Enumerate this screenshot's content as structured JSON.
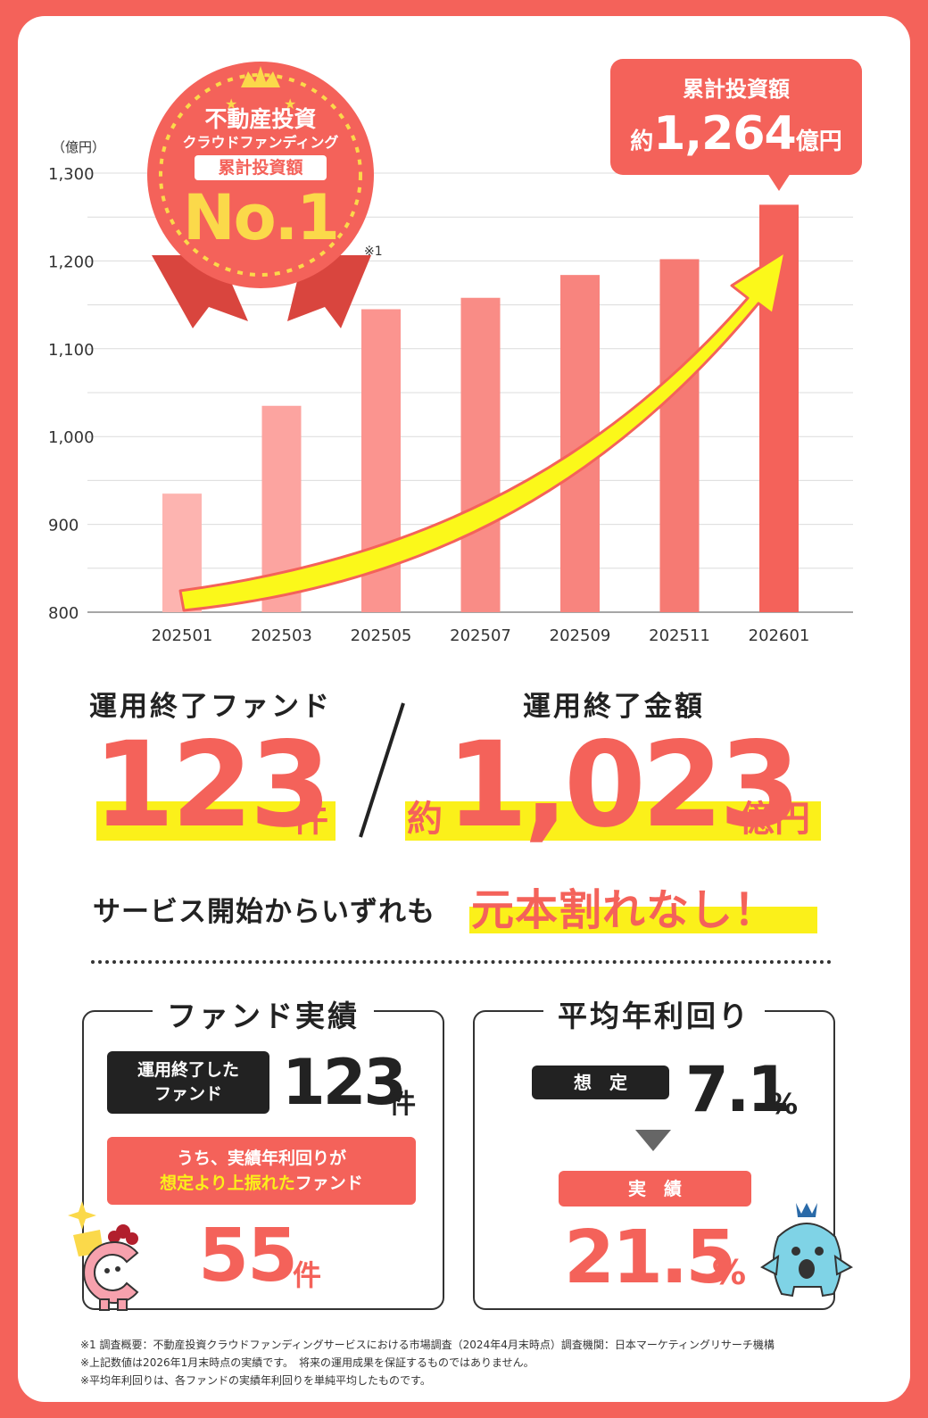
{
  "chart_data": {
    "type": "bar",
    "categories": [
      "202501",
      "202503",
      "202505",
      "202507",
      "202509",
      "202511",
      "202601"
    ],
    "values": [
      935,
      1035,
      1145,
      1158,
      1184,
      1202,
      1264
    ],
    "ylim": [
      800,
      1300
    ],
    "yticks": [
      "800",
      "900",
      "1,000",
      "1,100",
      "1,200",
      "1,300"
    ],
    "ytick_values": [
      800,
      900,
      1000,
      1100,
      1200,
      1300
    ],
    "yunit": "（億円）",
    "colors": [
      "#fdb4b0",
      "#fca4a0",
      "#fb948f",
      "#f98c86",
      "#f8847e",
      "#f67a73",
      "#f4625a"
    ],
    "grid": true
  },
  "badge": {
    "line1": "不動産投資",
    "line2": "クラウドファンディング",
    "line3": "累計投資額",
    "rank": "No.1",
    "note_mark": "※1"
  },
  "callout": {
    "title": "累計投資額",
    "prefix": "約",
    "amount": "1,264",
    "suffix": "億円"
  },
  "stats": {
    "funds_label": "運用終了ファンド",
    "funds_value": "123",
    "funds_unit": "件",
    "amount_label": "運用終了金額",
    "amount_prefix": "約",
    "amount_value": "1,023",
    "amount_unit": "億円",
    "slogan_lead": "サービス開始からいずれも",
    "slogan_highlight": "元本割れなし！"
  },
  "fund_box": {
    "title": "ファンド実績",
    "pill_line1": "運用終了した",
    "pill_line2": "ファンド",
    "count": "123",
    "count_unit": "件",
    "sub_line1": "うち、実績年利回りが",
    "sub_line2_highlight": "想定より上振れた",
    "sub_line2_rest": "ファンド",
    "sub_count": "55",
    "sub_unit": "件"
  },
  "yield_box": {
    "title": "平均年利回り",
    "assumed_label": "想　定",
    "assumed_value": "7.1",
    "assumed_unit": "%",
    "actual_label": "実　績",
    "actual_value": "21.5",
    "actual_unit": "%"
  },
  "footnotes": [
    "※1 調査概要：不動産投資クラウドファンディングサービスにおける市場調査（2024年4月末時点）調査機関：日本マーケティングリサーチ機構",
    "※上記数値は2026年1月末時点の実績です。　将来の運用成果を保証するものではありません。",
    "※平均年利回りは、各ファンドの実績年利回りを単純平均したものです。"
  ],
  "colors": {
    "accent": "#f4625a",
    "highlight": "#fbf01a",
    "dark": "#222222"
  }
}
